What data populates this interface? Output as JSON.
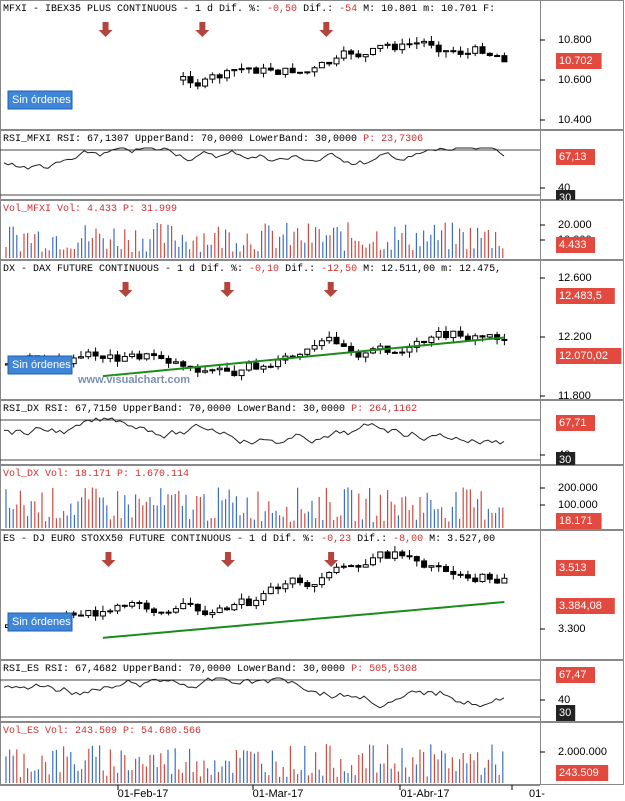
{
  "panels": [
    {
      "header": [
        {
          "text": "MFXI - IBEX35 PLUS CONTINUOUS - 1 d Dif. %: ",
          "color": "#000000"
        },
        {
          "text": "-0,50",
          "color": "#d03030"
        },
        {
          "text": " Dif.: ",
          "color": "#000000"
        },
        {
          "text": "-54",
          "color": "#d03030"
        },
        {
          "text": " M: 10.801 m: 10.701 F:",
          "color": "#000000"
        }
      ],
      "badge": "Sin órdenes",
      "axis_labels": [
        "10.800",
        "10.600",
        "10.400"
      ],
      "tags": [
        {
          "text": "10.702",
          "color": "#e24a3f"
        }
      ]
    },
    {
      "header": [
        {
          "text": "RSI_MFXI RSI: 67,1307 UpperBand: 70,0000 LowerBand: 30,0000 ",
          "color": "#000000"
        },
        {
          "text": "P: 23,7306",
          "color": "#d03030"
        }
      ],
      "axis_labels": [
        "40"
      ],
      "tags": [
        {
          "text": "67,13",
          "color": "#e24a3f"
        },
        {
          "text": "30",
          "color": "#222222"
        }
      ]
    },
    {
      "header": [
        {
          "text": "Vol_MFXI Vol: 4.433 ",
          "color": "#d03030"
        },
        {
          "text": "P: 31.999",
          "color": "#d03030"
        }
      ],
      "axis_labels": [
        "20.000",
        "10.000"
      ],
      "tags": [
        {
          "text": "4.433",
          "color": "#e24a3f"
        }
      ]
    },
    {
      "header": [
        {
          "text": "DX - DAX FUTURE CONTINUOUS - 1 d Dif. %: ",
          "color": "#000000"
        },
        {
          "text": "-0,10",
          "color": "#d03030"
        },
        {
          "text": " Dif.: ",
          "color": "#000000"
        },
        {
          "text": "-12,50",
          "color": "#d03030"
        },
        {
          "text": " M: 12.511,00 m: 12.475,",
          "color": "#000000"
        }
      ],
      "badge": "Sin órdenes",
      "watermark": "www.visualchart.com",
      "axis_labels": [
        "12.600",
        "12.200",
        "11.800"
      ],
      "tags": [
        {
          "text": "12.483,5",
          "color": "#e24a3f"
        },
        {
          "text": "12.070,02",
          "color": "#e24a3f"
        }
      ]
    },
    {
      "header": [
        {
          "text": "RSI_DX RSI: 67,7150 UpperBand: 70,0000 LowerBand: 30,0000 ",
          "color": "#000000"
        },
        {
          "text": "P: 264,1162",
          "color": "#d03030"
        }
      ],
      "axis_labels": [
        "40"
      ],
      "tags": [
        {
          "text": "67,71",
          "color": "#e24a3f"
        },
        {
          "text": "30",
          "color": "#222222"
        }
      ]
    },
    {
      "header": [
        {
          "text": "Vol_DX Vol: 18.171 ",
          "color": "#d03030"
        },
        {
          "text": "P: 1.670.114",
          "color": "#d03030"
        }
      ],
      "axis_labels": [
        "200.000",
        "100.000"
      ],
      "tags": [
        {
          "text": "18.171",
          "color": "#e24a3f"
        }
      ]
    },
    {
      "header": [
        {
          "text": "ES - DJ EURO STOXX50 FUTURE CONTINUOUS - 1 d Dif. %: ",
          "color": "#000000"
        },
        {
          "text": "-0,23",
          "color": "#d03030"
        },
        {
          "text": " Dif.: ",
          "color": "#000000"
        },
        {
          "text": "-8,00",
          "color": "#d03030"
        },
        {
          "text": " M: 3.527,00",
          "color": "#000000"
        }
      ],
      "badge": "Sin órdenes",
      "axis_labels": [
        "3.300"
      ],
      "tags": [
        {
          "text": "3.513",
          "color": "#e24a3f"
        },
        {
          "text": "3.384,08",
          "color": "#e24a3f"
        }
      ]
    },
    {
      "header": [
        {
          "text": "RSI_ES RSI: 67,4682 UpperBand: 70,0000 LowerBand: 30,0000 ",
          "color": "#000000"
        },
        {
          "text": "P: 505,5308",
          "color": "#d03030"
        }
      ],
      "axis_labels": [
        "40"
      ],
      "tags": [
        {
          "text": "67,47",
          "color": "#e24a3f"
        },
        {
          "text": "30",
          "color": "#222222"
        }
      ]
    },
    {
      "header": [
        {
          "text": "Vol_ES Vol: 243.509 ",
          "color": "#d03030"
        },
        {
          "text": "P: 54.680.566",
          "color": "#d03030"
        }
      ],
      "axis_labels": [
        "2.000.000"
      ],
      "tags": [
        {
          "text": "243.509",
          "color": "#e24a3f"
        }
      ]
    }
  ],
  "dates": [
    "01-Feb-17",
    "01-Mar-17",
    "01-Abr-17",
    "01-"
  ]
}
